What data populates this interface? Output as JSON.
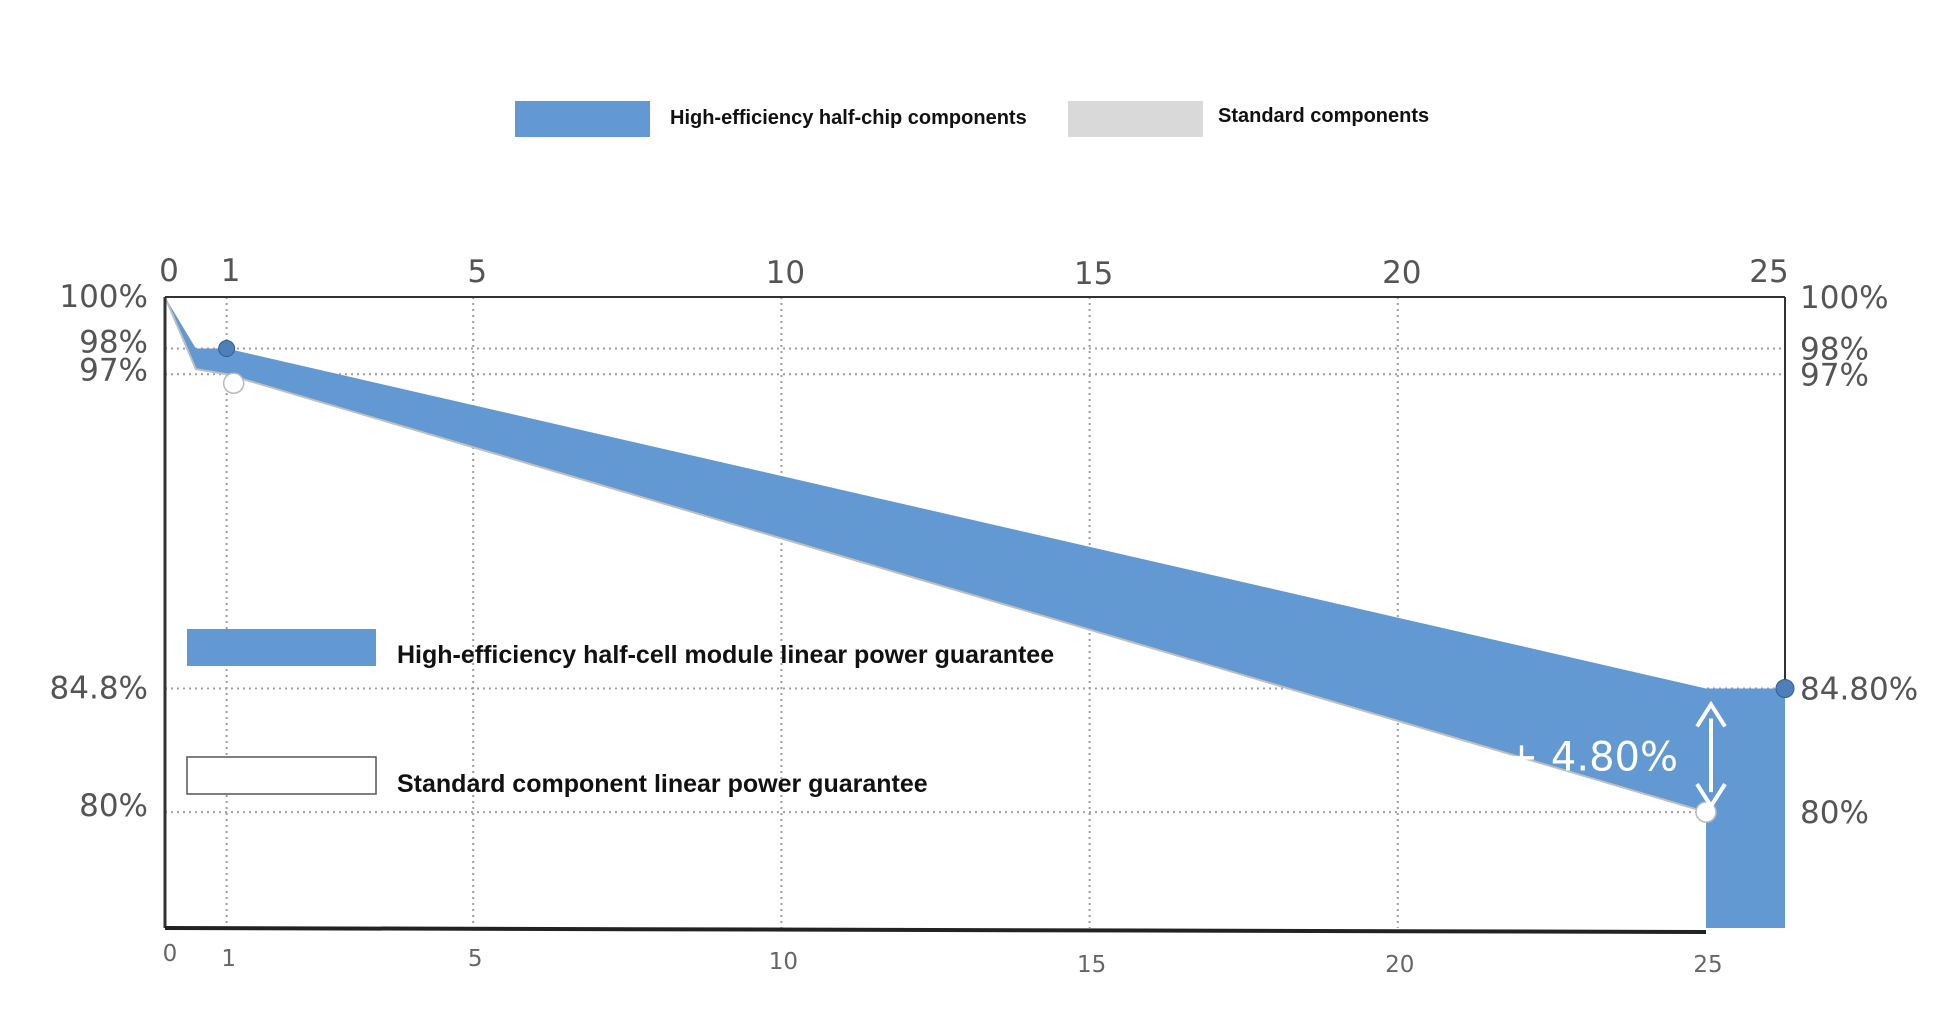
{
  "chart_data": {
    "type": "area",
    "title": "",
    "legend_top": [
      {
        "label": "High-efficiency half-chip components",
        "color": "#6399d2"
      },
      {
        "label": "Standard components",
        "color": "#d9d9d9"
      }
    ],
    "legend_inner": [
      {
        "label": "High-efficiency half-cell module linear power guarantee",
        "color": "#6399d2"
      },
      {
        "label": "Standard component linear power guarantee",
        "color": "#ffffff"
      }
    ],
    "x_ticks_top": [
      "0",
      "1",
      "5",
      "10",
      "15",
      "20",
      "25"
    ],
    "x_ticks_bottom": [
      "0",
      "1",
      "5",
      "10",
      "15",
      "20",
      "25"
    ],
    "x_tick_values": [
      0,
      1,
      5,
      10,
      15,
      20,
      25
    ],
    "y_ticks_left": [
      {
        "label": "100%",
        "value": 100
      },
      {
        "label": "98%",
        "value": 98
      },
      {
        "label": "97%",
        "value": 97
      },
      {
        "label": "84.8%",
        "value": 84.8
      },
      {
        "label": "80%",
        "value": 80
      }
    ],
    "y_ticks_right": [
      {
        "label": "100%",
        "value": 100
      },
      {
        "label": "98%",
        "value": 98
      },
      {
        "label": "97%",
        "value": 97
      },
      {
        "label": "84.80%",
        "value": 84.8
      },
      {
        "label": "80%",
        "value": 80
      }
    ],
    "xlim": [
      0,
      25
    ],
    "ylim": [
      75.5,
      100
    ],
    "grid": true,
    "legend_position": "top",
    "series": [
      {
        "name": "High-efficiency half-cell module linear power guarantee",
        "color": "#6399d2",
        "x": [
          0,
          0.5,
          1,
          25
        ],
        "values": [
          100,
          98,
          98,
          84.8
        ]
      },
      {
        "name": "Standard component linear power guarantee",
        "color": "#ffffff",
        "x": [
          0,
          0.5,
          1,
          25
        ],
        "values": [
          100,
          97.2,
          97,
          80
        ]
      }
    ],
    "annotations": [
      {
        "text": "+ 4.80%",
        "x": 25,
        "from": 80,
        "to": 84.8
      }
    ]
  }
}
